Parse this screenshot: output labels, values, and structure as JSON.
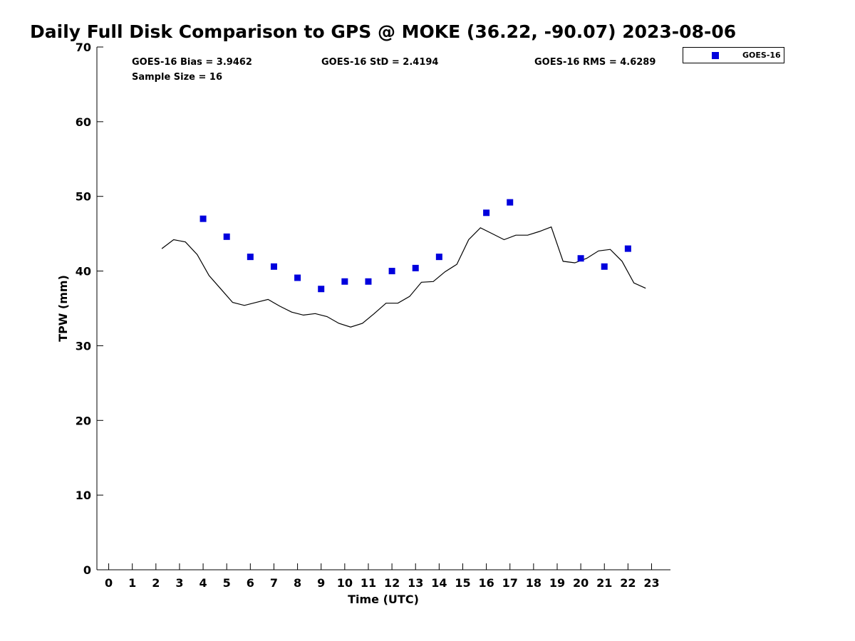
{
  "chart_data": {
    "type": "scatter",
    "title": "Daily Full Disk Comparison to GPS @ MOKE (36.22, -90.07) 2023-08-06",
    "xlabel": "Time (UTC)",
    "ylabel": "TPW (mm)",
    "xlim": [
      -0.5,
      23.8
    ],
    "ylim": [
      0,
      70
    ],
    "xticks": [
      0,
      1,
      2,
      3,
      4,
      5,
      6,
      7,
      8,
      9,
      10,
      11,
      12,
      13,
      14,
      15,
      16,
      17,
      18,
      19,
      20,
      21,
      22,
      23
    ],
    "yticks": [
      0,
      10,
      20,
      30,
      40,
      50,
      60,
      70
    ],
    "grid": false,
    "legend_position": "top-right-outside",
    "colors": {
      "goes": "#0000dd",
      "gps_line": "#000000"
    },
    "stats": {
      "bias": "GOES-16 Bias = 3.9462",
      "std": "GOES-16 StD = 2.4194",
      "rms": "GOES-16 RMS = 4.6289",
      "sample": "Sample Size = 16"
    },
    "series": [
      {
        "name": "GOES-16",
        "kind": "scatter",
        "x": [
          4,
          5,
          6,
          7,
          8,
          9,
          10,
          11,
          12,
          13,
          14,
          16,
          17,
          20,
          21,
          22
        ],
        "y": [
          47.0,
          44.6,
          41.9,
          40.6,
          39.1,
          37.6,
          38.6,
          38.6,
          40.0,
          40.4,
          41.9,
          47.8,
          49.2,
          41.7,
          40.6,
          43.0
        ]
      },
      {
        "kind": "line",
        "x": [
          2.25,
          2.75,
          3.25,
          3.75,
          4.25,
          4.75,
          5.25,
          5.75,
          6.25,
          6.75,
          7.25,
          7.75,
          8.25,
          8.75,
          9.25,
          9.75,
          10.25,
          10.75,
          11.25,
          11.75,
          12.25,
          12.75,
          13.25,
          13.75,
          14.25,
          14.75,
          15.25,
          15.75,
          16.25,
          16.75,
          17.25,
          17.75,
          18.25,
          18.75,
          19.25,
          19.75,
          20.25,
          20.75,
          21.25,
          21.75,
          22.25,
          22.75
        ],
        "y": [
          43.0,
          44.2,
          43.9,
          42.2,
          39.4,
          37.6,
          35.8,
          35.4,
          35.8,
          36.2,
          35.3,
          34.5,
          34.1,
          34.3,
          33.9,
          33.0,
          32.5,
          33.0,
          34.3,
          35.7,
          35.7,
          36.6,
          38.5,
          38.6,
          39.9,
          40.9,
          44.2,
          45.8,
          45.0,
          44.2,
          44.8,
          44.8,
          45.3,
          45.9,
          41.3,
          41.1,
          41.7,
          42.7,
          42.9,
          41.3,
          38.4,
          37.7
        ]
      }
    ]
  }
}
